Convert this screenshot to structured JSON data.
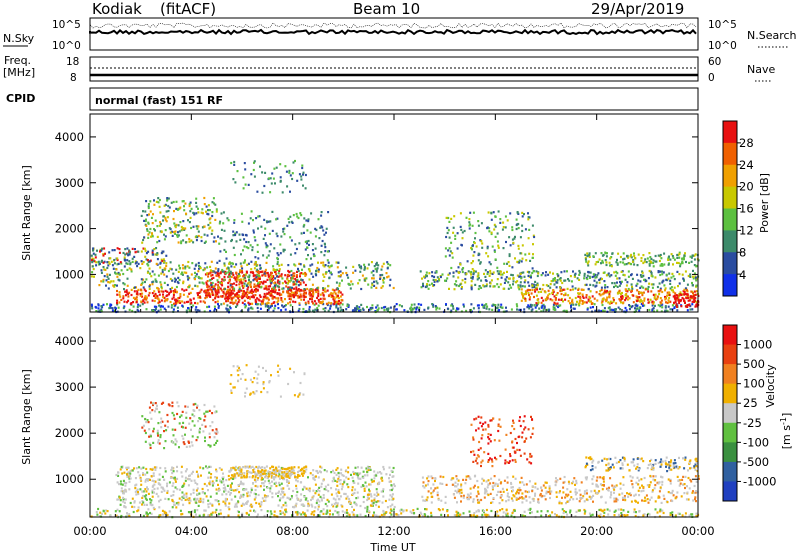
{
  "header": {
    "station": "Kodiak",
    "mode": "(fitACF)",
    "beam": "Beam 10",
    "date": "29/Apr/2019"
  },
  "top_panels": {
    "nsky_label": "N.Sky",
    "nsky_ticks": [
      "10^5",
      "10^0"
    ],
    "nsearch_label": "N.Search",
    "nsearch_ticks": [
      "10^5",
      "10^0"
    ],
    "freq_label_1": "Freq.",
    "freq_label_2": "[MHz]",
    "freq_ticks": [
      "18",
      "8"
    ],
    "nave_label": "Nave",
    "nave_ticks": [
      "60",
      "0"
    ],
    "cpid_label": "CPID",
    "cpid_text": "normal (fast) 151 RF"
  },
  "chart_data": [
    {
      "type": "heatmap",
      "panel": "power",
      "ylabel": "Slant Range [km]",
      "xlabel": "",
      "y_ticks": [
        "1000",
        "2000",
        "3000",
        "4000"
      ],
      "ylim": [
        180,
        4500
      ],
      "x_ticks": [
        "00:00",
        "04:00",
        "08:00",
        "12:00",
        "16:00",
        "20:00",
        "00:00"
      ],
      "colorbar": {
        "label": "Power [dB]",
        "ticks": [
          "4",
          "8",
          "12",
          "16",
          "20",
          "24",
          "28"
        ],
        "colors": [
          "#1030e8",
          "#2a4ca0",
          "#3c8a6a",
          "#5cc040",
          "#c8c800",
          "#f0a000",
          "#f06000",
          "#e81010"
        ]
      }
    },
    {
      "type": "heatmap",
      "panel": "velocity",
      "ylabel": "Slant Range [km]",
      "xlabel": "Time UT",
      "y_ticks": [
        "1000",
        "2000",
        "3000",
        "4000"
      ],
      "ylim": [
        180,
        4500
      ],
      "x_ticks": [
        "00:00",
        "04:00",
        "08:00",
        "12:00",
        "16:00",
        "20:00",
        "00:00"
      ],
      "colorbar": {
        "label": "Velocity",
        "unit": "[m s",
        "unit_exp": "-1",
        "unit_close": "]",
        "ticks": [
          "1000",
          "500",
          "100",
          "25",
          "-25",
          "-100",
          "-500",
          "-1000"
        ],
        "colors": [
          "#2040c0",
          "#3060a0",
          "#3a9040",
          "#60c040",
          "#c8c8c8",
          "#f0b000",
          "#f08020",
          "#e84010",
          "#e81010"
        ]
      }
    }
  ]
}
